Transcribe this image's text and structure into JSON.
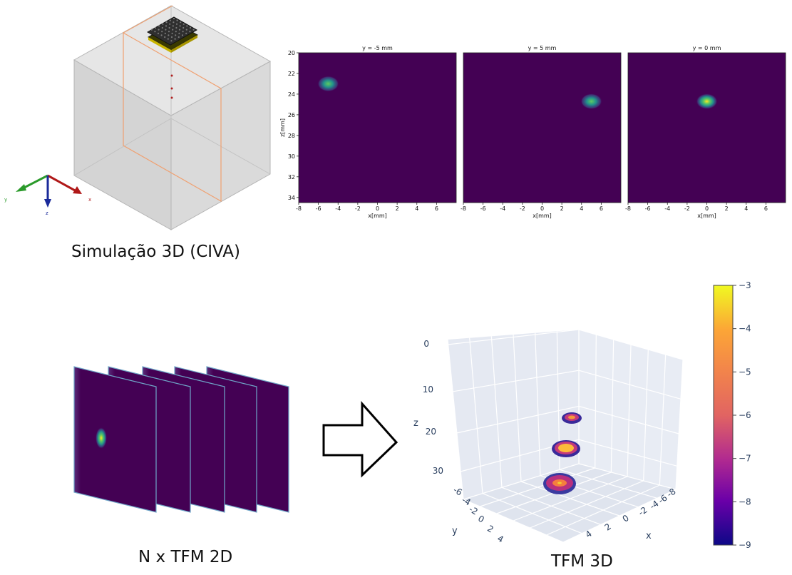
{
  "sim_caption": "Simulação 3D (CIVA)",
  "stack_caption": "N x TFM 2D",
  "tfm3d_caption": "TFM 3D",
  "triad": {
    "x": "x",
    "y": "y",
    "z": "z"
  },
  "chart_data": [
    {
      "type": "heatmap",
      "title": "y = -5 mm",
      "xlabel": "x[mm]",
      "ylabel": "z[mm]",
      "xlim": [
        -8,
        8
      ],
      "ylim": [
        20,
        34.5
      ],
      "x_ticks": [
        "-8",
        "-6",
        "-4",
        "-2",
        "0",
        "2",
        "4",
        "6"
      ],
      "y_ticks": [
        "20",
        "22",
        "24",
        "26",
        "28",
        "30",
        "32",
        "34"
      ],
      "peak": {
        "x": -5,
        "z": 23
      }
    },
    {
      "type": "heatmap",
      "title": "y = 5 mm",
      "xlabel": "x[mm]",
      "ylabel": "",
      "xlim": [
        -8,
        8
      ],
      "ylim": [
        20,
        34.5
      ],
      "x_ticks": [
        "-8",
        "-6",
        "-4",
        "-2",
        "0",
        "2",
        "4",
        "6"
      ],
      "peak": {
        "x": 5,
        "z": 24.7
      }
    },
    {
      "type": "heatmap",
      "title": "y = 0 mm",
      "xlabel": "x[mm]",
      "ylabel": "",
      "xlim": [
        -8,
        8
      ],
      "ylim": [
        20,
        34.5
      ],
      "x_ticks": [
        "-8",
        "-6",
        "-4",
        "-2",
        "0",
        "2",
        "4",
        "6"
      ],
      "peak": {
        "x": 0,
        "z": 24.7
      }
    },
    {
      "type": "scatter",
      "axes": {
        "x": "x",
        "y": "y",
        "z": "z"
      },
      "x_ticks": [
        "-8",
        "-6",
        "-4",
        "-2",
        "0",
        "2",
        "4"
      ],
      "y_ticks": [
        "-6",
        "-4",
        "-2",
        "0",
        "2",
        "4"
      ],
      "z_ticks": [
        "0",
        "10",
        "20",
        "30"
      ],
      "colorbar": {
        "ticks": [
          "-3",
          "-4",
          "-5",
          "-6",
          "-7",
          "-8",
          "-9"
        ],
        "range": [
          -9,
          -3
        ]
      }
    }
  ],
  "colors": {
    "viridis_bg": "#440154",
    "plasma_low": "#0d0887",
    "plasma_high": "#f0f921"
  }
}
